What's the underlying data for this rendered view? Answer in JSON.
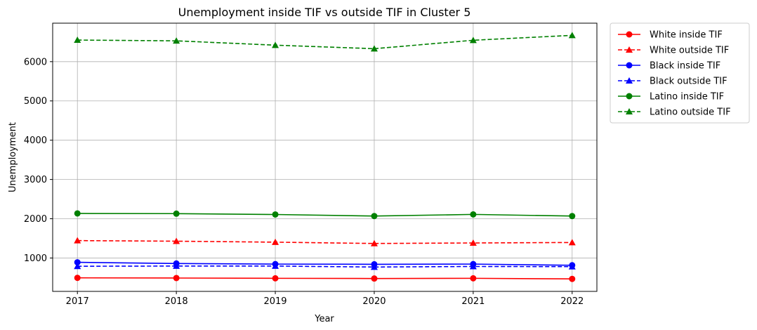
{
  "chart_data": {
    "type": "line",
    "title": "Unemployment inside TIF vs outside TIF in Cluster 5",
    "xlabel": "Year",
    "ylabel": "Unemployment",
    "x": [
      2017,
      2018,
      2019,
      2020,
      2021,
      2022
    ],
    "xticks": [
      "2017",
      "2018",
      "2019",
      "2020",
      "2021",
      "2022"
    ],
    "yticks": [
      1000,
      2000,
      3000,
      4000,
      5000,
      6000
    ],
    "ytick_labels": [
      "1000",
      "2000",
      "3000",
      "4000",
      "5000",
      "6000"
    ],
    "xlim": [
      2016.75,
      2022.25
    ],
    "ylim": [
      150,
      6980
    ],
    "grid": true,
    "legend_position": "outside right, top",
    "series": [
      {
        "name": "White inside TIF",
        "color": "#ff0000",
        "dash": "solid",
        "marker": "circle",
        "values": [
          495,
          490,
          483,
          478,
          483,
          468
        ]
      },
      {
        "name": "White outside TIF",
        "color": "#ff0000",
        "dash": "dashed",
        "marker": "triangle",
        "values": [
          1443,
          1428,
          1403,
          1370,
          1383,
          1395
        ]
      },
      {
        "name": "Black inside TIF",
        "color": "#0000ff",
        "dash": "solid",
        "marker": "circle",
        "values": [
          890,
          860,
          845,
          840,
          845,
          815
        ]
      },
      {
        "name": "Black outside TIF",
        "color": "#0000ff",
        "dash": "dashed",
        "marker": "triangle",
        "values": [
          790,
          795,
          795,
          770,
          785,
          780
        ]
      },
      {
        "name": "Latino inside TIF",
        "color": "#008000",
        "dash": "solid",
        "marker": "circle",
        "values": [
          2135,
          2130,
          2108,
          2068,
          2110,
          2068
        ]
      },
      {
        "name": "Latino outside TIF",
        "color": "#008000",
        "dash": "dashed",
        "marker": "triangle",
        "values": [
          6550,
          6530,
          6420,
          6330,
          6545,
          6670
        ]
      }
    ]
  }
}
